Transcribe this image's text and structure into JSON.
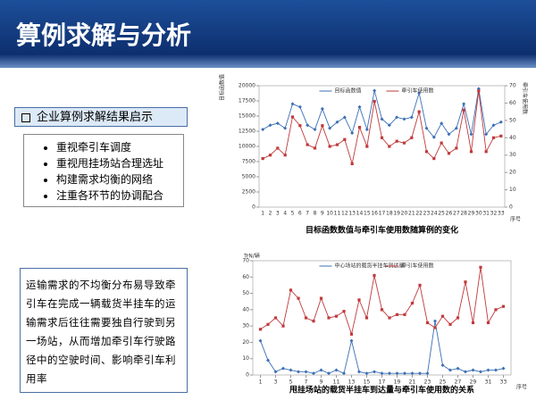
{
  "header": {
    "title": "算例求解与分析"
  },
  "panel": {
    "heading": "企业算例求解结果启示",
    "bullets": [
      "重视牵引车调度",
      "重视甩挂场站合理选址",
      "构建需求均衡的网络",
      "注重各环节的协调配合"
    ]
  },
  "note": {
    "text": "运输需求的不均衡分布易导致牵引车在完成一辆载货半挂车的运输需求后往往需要独自行驶到另一场站，从而增加牵引车行驶路径中的空驶时间、影响牵引车利用率"
  },
  "chart_data": [
    {
      "type": "line",
      "caption": "目标函数数值与牵引车使用数随算例的变化",
      "ylabel": "目标函数值",
      "y2label": "牵引车使用数",
      "xlabel": "序号",
      "categories": [
        1,
        2,
        3,
        4,
        5,
        6,
        7,
        8,
        9,
        10,
        11,
        12,
        13,
        14,
        15,
        16,
        17,
        18,
        19,
        20,
        21,
        22,
        23,
        24,
        25,
        26,
        27,
        28,
        29,
        30,
        31,
        32,
        33
      ],
      "ylim": [
        0,
        20000
      ],
      "yticks": [
        0,
        2500,
        5000,
        7500,
        10000,
        12500,
        15000,
        17500,
        20000
      ],
      "y2lim": [
        0,
        70
      ],
      "y2ticks": [
        0,
        10,
        20,
        30,
        40,
        50,
        60,
        70
      ],
      "series": [
        {
          "name": "目标函数值",
          "color": "#3a6fb5",
          "marker": "diamond",
          "values": [
            12800,
            13500,
            13800,
            13000,
            17000,
            16500,
            13500,
            12800,
            16200,
            13000,
            14000,
            14800,
            12200,
            16500,
            12800,
            19200,
            14500,
            13500,
            14800,
            14500,
            14800,
            18800,
            13000,
            11500,
            13800,
            12000,
            13000,
            17000,
            12000,
            19500,
            12000,
            13500,
            14000
          ]
        },
        {
          "name": "牵引车使用数",
          "color": "#c0393b",
          "marker": "square",
          "axis": "y2",
          "values": [
            28,
            30,
            34,
            30,
            52,
            47,
            36,
            34,
            47,
            35,
            36,
            39,
            25,
            46,
            35,
            61,
            40,
            35,
            38,
            37,
            40,
            55,
            32,
            28,
            37,
            31,
            34,
            56,
            32,
            67,
            32,
            40,
            41
          ]
        }
      ]
    },
    {
      "type": "line",
      "caption": "甩挂场站的载货半挂车到达量与牵引车使用数的关系",
      "ylabel": "TrN/辆",
      "xlabel": "序号",
      "x": [
        1,
        2,
        3,
        4,
        5,
        6,
        7,
        8,
        9,
        10,
        11,
        12,
        13,
        14,
        15,
        16,
        17,
        18,
        19,
        20,
        21,
        22,
        23,
        24,
        25,
        26,
        27,
        28,
        29,
        30,
        31,
        32,
        33
      ],
      "xlim": [
        0,
        34
      ],
      "xticks": [
        1,
        3,
        5,
        7,
        9,
        11,
        13,
        15,
        17,
        19,
        21,
        23,
        25,
        27,
        29,
        31,
        33
      ],
      "ylim": [
        0,
        70
      ],
      "yticks": [
        0,
        10,
        20,
        30,
        40,
        50,
        60,
        70
      ],
      "series": [
        {
          "name": "中心场站的载货半挂车到达量",
          "color": "#3a6fb5",
          "marker": "diamond",
          "values": [
            21,
            9,
            2,
            4,
            3,
            2,
            2,
            1,
            3,
            1,
            3,
            1,
            21,
            2,
            1,
            2,
            1,
            1,
            1,
            1,
            1,
            1,
            1,
            33,
            6,
            3,
            4,
            2,
            3,
            2,
            3,
            3,
            4
          ]
        },
        {
          "name": "牵引车使用数",
          "color": "#c0393b",
          "marker": "square",
          "values": [
            28,
            31,
            35,
            30,
            52,
            47,
            35,
            33,
            47,
            35,
            36,
            39,
            25,
            46,
            35,
            61,
            40,
            35,
            37,
            37,
            44,
            55,
            32,
            29,
            36,
            31,
            35,
            57,
            32,
            66,
            32,
            40,
            42
          ]
        }
      ]
    }
  ]
}
